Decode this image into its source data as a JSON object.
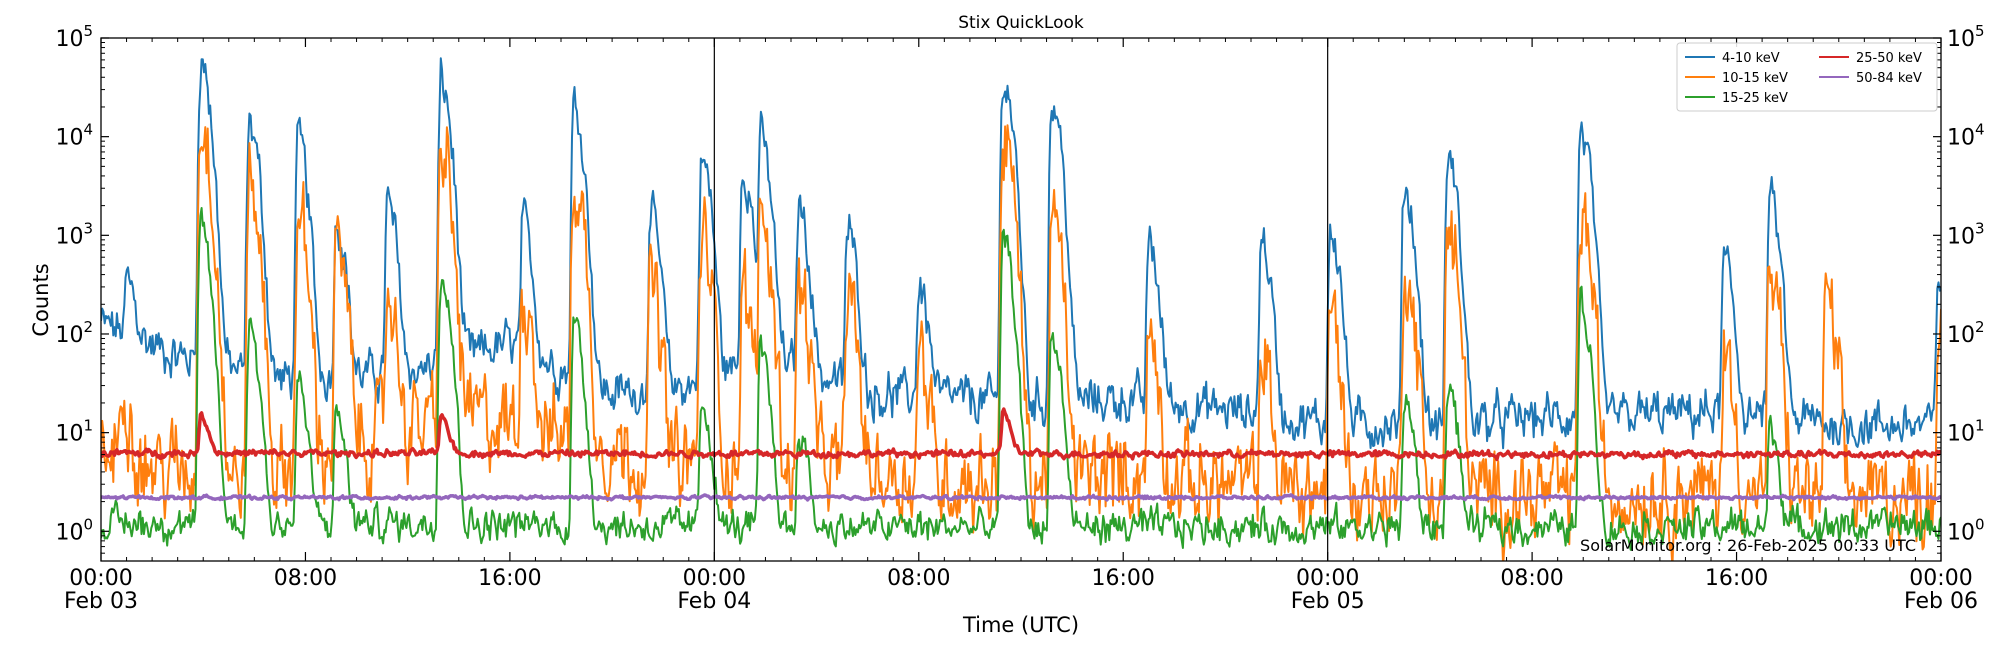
{
  "chart_data": {
    "type": "line",
    "title": "Stix QuickLook",
    "xlabel": "Time (UTC)",
    "ylabel": "Counts",
    "yscale": "log",
    "ylim": [
      0.5,
      100000
    ],
    "xlim_hours": [
      0,
      72
    ],
    "x_unit": "hours since Feb 03 00:00 UTC",
    "y_ticks": [
      {
        "value": 1,
        "base": "10",
        "exp": "0"
      },
      {
        "value": 10,
        "base": "10",
        "exp": "1"
      },
      {
        "value": 100,
        "base": "10",
        "exp": "2"
      },
      {
        "value": 1000,
        "base": "10",
        "exp": "3"
      },
      {
        "value": 10000,
        "base": "10",
        "exp": "4"
      },
      {
        "value": 100000,
        "base": "10",
        "exp": "5"
      }
    ],
    "x_ticks": [
      {
        "hour": 0,
        "line1": "00:00",
        "line2": "Feb 03"
      },
      {
        "hour": 8,
        "line1": "08:00",
        "line2": ""
      },
      {
        "hour": 16,
        "line1": "16:00",
        "line2": ""
      },
      {
        "hour": 24,
        "line1": "00:00",
        "line2": "Feb 04"
      },
      {
        "hour": 32,
        "line1": "08:00",
        "line2": ""
      },
      {
        "hour": 40,
        "line1": "16:00",
        "line2": ""
      },
      {
        "hour": 48,
        "line1": "00:00",
        "line2": "Feb 05"
      },
      {
        "hour": 56,
        "line1": "08:00",
        "line2": ""
      },
      {
        "hour": 64,
        "line1": "16:00",
        "line2": ""
      },
      {
        "hour": 72,
        "line1": "00:00",
        "line2": "Feb 06"
      }
    ],
    "day_boundaries_hours": [
      24,
      48
    ],
    "legend_position": "top-right",
    "annotation": "SolarMonitor.org : 26-Feb-2025 00:33 UTC",
    "series": [
      {
        "name": "4-10 keV",
        "color": "#1f77b4",
        "base": [
          [
            0,
            130
          ],
          [
            3,
            60
          ],
          [
            7,
            35
          ],
          [
            12,
            40
          ],
          [
            16,
            80
          ],
          [
            20,
            25
          ],
          [
            23,
            30
          ],
          [
            26,
            60
          ],
          [
            30,
            25
          ],
          [
            36,
            20
          ],
          [
            40,
            22
          ],
          [
            46,
            15
          ],
          [
            48,
            12
          ],
          [
            52,
            12
          ],
          [
            56,
            14
          ],
          [
            60,
            15
          ],
          [
            64,
            16
          ],
          [
            68,
            12
          ],
          [
            72,
            12
          ]
        ],
        "peaks": [
          [
            1,
            250
          ],
          [
            3.9,
            60000
          ],
          [
            5.8,
            14000
          ],
          [
            7.7,
            8800
          ],
          [
            9.2,
            1400
          ],
          [
            11.2,
            2000
          ],
          [
            13.3,
            35000
          ],
          [
            16.5,
            1200
          ],
          [
            18.5,
            21000
          ],
          [
            21.5,
            1500
          ],
          [
            23.5,
            6000
          ],
          [
            25.1,
            5000
          ],
          [
            25.8,
            9500
          ],
          [
            27.3,
            2000
          ],
          [
            29.2,
            1100
          ],
          [
            32,
            300
          ],
          [
            35.3,
            40000
          ],
          [
            37.2,
            23000
          ],
          [
            41,
            800
          ],
          [
            45.4,
            900
          ],
          [
            48.1,
            1200
          ],
          [
            51,
            3000
          ],
          [
            52.7,
            6000
          ],
          [
            57.9,
            12000
          ],
          [
            63.5,
            500
          ],
          [
            65.3,
            2200
          ],
          [
            71.9,
            400
          ]
        ],
        "noise": 0.16
      },
      {
        "name": "10-15 keV",
        "color": "#ff7f0e",
        "base": [
          [
            0,
            6
          ],
          [
            3,
            4
          ],
          [
            6,
            3
          ],
          [
            10,
            8
          ],
          [
            14,
            15
          ],
          [
            18,
            10
          ],
          [
            22,
            5
          ],
          [
            26,
            5
          ],
          [
            30,
            4
          ],
          [
            36,
            3
          ],
          [
            40,
            4
          ],
          [
            44,
            3
          ],
          [
            48,
            2.5
          ],
          [
            54,
            2.2
          ],
          [
            60,
            2.5
          ],
          [
            66,
            2.4
          ],
          [
            72,
            2.3
          ]
        ],
        "peaks": [
          [
            0.8,
            30
          ],
          [
            3.9,
            15000
          ],
          [
            5.8,
            3000
          ],
          [
            7.7,
            1300
          ],
          [
            9.2,
            700
          ],
          [
            11.2,
            250
          ],
          [
            13.3,
            7000
          ],
          [
            16.5,
            300
          ],
          [
            18.5,
            3600
          ],
          [
            21.5,
            300
          ],
          [
            23.5,
            1000
          ],
          [
            25.1,
            250
          ],
          [
            25.8,
            1600
          ],
          [
            27.3,
            300
          ],
          [
            29.2,
            250
          ],
          [
            32,
            60
          ],
          [
            35.3,
            10000
          ],
          [
            37.2,
            1300
          ],
          [
            41,
            90
          ],
          [
            45.4,
            60
          ],
          [
            48.1,
            150
          ],
          [
            51,
            500
          ],
          [
            52.7,
            1000
          ],
          [
            57.9,
            1700
          ],
          [
            63.5,
            60
          ],
          [
            65.3,
            350
          ],
          [
            67.5,
            200
          ],
          [
            71.9,
            100
          ]
        ],
        "noise": 0.33
      },
      {
        "name": "15-25 keV",
        "color": "#2ca02c",
        "base": [
          [
            0,
            1.2
          ],
          [
            12,
            1.2
          ],
          [
            24,
            1.1
          ],
          [
            36,
            1.1
          ],
          [
            48,
            1.1
          ],
          [
            60,
            1.1
          ],
          [
            72,
            1.15
          ]
        ],
        "peaks": [
          [
            3.9,
            1200
          ],
          [
            5.8,
            120
          ],
          [
            7.7,
            30
          ],
          [
            9.2,
            15
          ],
          [
            13.3,
            450
          ],
          [
            18.5,
            120
          ],
          [
            23.5,
            20
          ],
          [
            25.8,
            60
          ],
          [
            27.3,
            10
          ],
          [
            35.3,
            900
          ],
          [
            37.2,
            100
          ],
          [
            51,
            20
          ],
          [
            52.7,
            30
          ],
          [
            57.9,
            200
          ],
          [
            65.3,
            10
          ]
        ],
        "noise": 0.12
      },
      {
        "name": "25-50 keV",
        "color": "#d62728",
        "base": [
          [
            0,
            6.2
          ],
          [
            72,
            6.0
          ]
        ],
        "peaks": [
          [
            3.9,
            9
          ],
          [
            13.3,
            9
          ],
          [
            35.3,
            10
          ]
        ],
        "noise": 0.025
      },
      {
        "name": "50-84 keV",
        "color": "#9467bd",
        "base": [
          [
            0,
            2.2
          ],
          [
            72,
            2.2
          ]
        ],
        "peaks": [],
        "noise": 0.012
      }
    ]
  }
}
